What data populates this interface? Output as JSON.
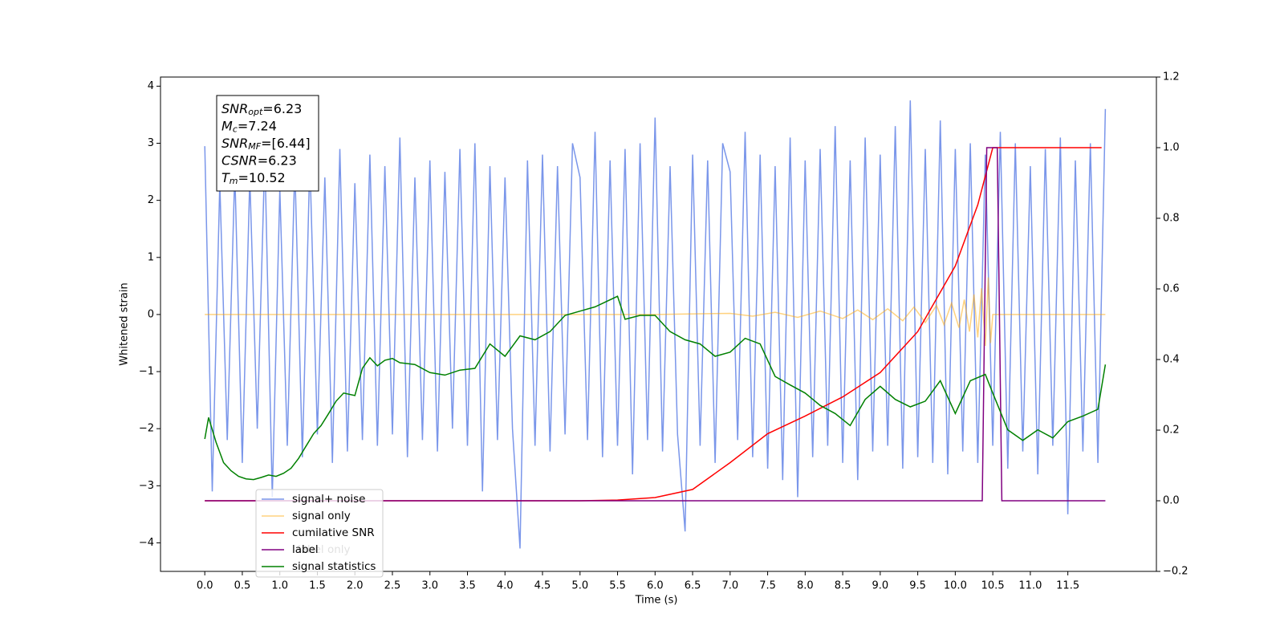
{
  "chart_data": {
    "type": "line",
    "xlabel": "Time (s)",
    "ylabel": "Whitened strain",
    "xlim": [
      -0.59,
      12.68
    ],
    "ylim": [
      -4.5,
      4.16
    ],
    "y2lim": [
      -0.2,
      1.2
    ],
    "xticks": [
      {
        "value": 0,
        "label": "0.0"
      },
      0.5,
      {
        "value": 1,
        "label": "1.0"
      },
      1.5,
      {
        "value": 2,
        "label": "2.0"
      },
      2.5,
      {
        "value": 3,
        "label": "3.0"
      },
      3.5,
      {
        "value": 4,
        "label": "4.0"
      },
      4.5,
      {
        "value": 5,
        "label": "5.0"
      },
      5.5,
      {
        "value": 6,
        "label": "6.0"
      },
      6.5,
      {
        "value": 7,
        "label": "7.0"
      },
      7.5,
      {
        "value": 8,
        "label": "8.0"
      },
      8.5,
      {
        "value": 9,
        "label": "9.0"
      },
      9.5,
      {
        "value": 10,
        "label": "10.0"
      },
      10.5,
      {
        "value": 11,
        "label": "11.0"
      },
      11.5
    ],
    "yticks": [
      {
        "value": -4,
        "label": "−4"
      },
      {
        "value": -3,
        "label": "−3"
      },
      {
        "value": -2,
        "label": "−2"
      },
      {
        "value": -1,
        "label": "−1"
      },
      0,
      1,
      2,
      3,
      4
    ],
    "y2ticks": [
      {
        "value": -0.2,
        "label": "−0.2"
      },
      {
        "value": 0,
        "label": "0.0"
      },
      0.2,
      0.4,
      0.6,
      0.8,
      {
        "value": 1,
        "label": "1.0"
      },
      1.2
    ],
    "legend": "lower left",
    "hidden_legend_entries": [
      {
        "name": "label only",
        "color": "purple"
      }
    ],
    "annotation": [
      {
        "base": "SNR",
        "sub": "opt",
        "text": "=6.23"
      },
      {
        "base": "M",
        "sub": "c",
        "text": "=7.24"
      },
      {
        "base": "SNR",
        "sub": "MF",
        "text": "=[6.44]"
      },
      {
        "base": "CSNR",
        "sub": null,
        "text": "=6.23"
      },
      {
        "base": "T",
        "sub": "m",
        "text": "=10.52"
      }
    ],
    "series": [
      {
        "name": "signal+ noise",
        "color": "#4169e1",
        "alpha": 0.7,
        "x": [
          0,
          0.1,
          0.2,
          0.3,
          0.4,
          0.5,
          0.6,
          0.7,
          0.8,
          0.9,
          1,
          1.1,
          1.2,
          1.3,
          1.4,
          1.5,
          1.6,
          1.7,
          1.8,
          1.9,
          2,
          2.1,
          2.2,
          2.3,
          2.4,
          2.5,
          2.6,
          2.7,
          2.8,
          2.9,
          3,
          3.1,
          3.2,
          3.3,
          3.4,
          3.5,
          3.6,
          3.7,
          3.8,
          3.9,
          4,
          4.1,
          4.2,
          4.3,
          4.4,
          4.5,
          4.6,
          4.7,
          4.8,
          4.9,
          5,
          5.1,
          5.2,
          5.3,
          5.4,
          5.5,
          5.6,
          5.7,
          5.8,
          5.9,
          6,
          6.1,
          6.2,
          6.3,
          6.4,
          6.5,
          6.6,
          6.7,
          6.8,
          6.9,
          7,
          7.1,
          7.2,
          7.3,
          7.4,
          7.5,
          7.6,
          7.7,
          7.8,
          7.9,
          8,
          8.1,
          8.2,
          8.3,
          8.4,
          8.5,
          8.6,
          8.7,
          8.8,
          8.9,
          9,
          9.1,
          9.2,
          9.3,
          9.4,
          9.5,
          9.6,
          9.7,
          9.8,
          9.9,
          10,
          10.1,
          10.2,
          10.3,
          10.4,
          10.5,
          10.6,
          10.7,
          10.8,
          10.9,
          11,
          11.1,
          11.2,
          11.3,
          11.4,
          11.5,
          11.6,
          11.7,
          11.8,
          11.9,
          12
        ],
        "values": [
          2.95,
          -3.1,
          2.3,
          -2.2,
          2.5,
          -2.6,
          2.4,
          -2.0,
          2.8,
          -3.2,
          2.2,
          -2.3,
          2.6,
          -2.5,
          2.7,
          -2.1,
          2.4,
          -2.6,
          2.9,
          -2.4,
          2.3,
          -2.2,
          2.8,
          -2.3,
          2.6,
          -2.1,
          3.1,
          -2.5,
          2.4,
          -2.2,
          2.7,
          -2.4,
          2.5,
          -2.0,
          2.9,
          -2.3,
          3.0,
          -3.1,
          2.6,
          -2.2,
          2.4,
          -2.0,
          -4.1,
          2.7,
          -2.3,
          2.8,
          -2.4,
          2.6,
          -2.1,
          3.0,
          2.4,
          -2.2,
          3.2,
          -2.5,
          2.7,
          -2.3,
          2.9,
          -2.8,
          3.0,
          -2.2,
          3.45,
          -2.4,
          2.6,
          -2.1,
          -3.8,
          2.8,
          -2.3,
          2.7,
          -2.6,
          3.0,
          2.5,
          -2.2,
          3.2,
          -2.5,
          2.8,
          -2.7,
          2.6,
          -2.9,
          3.1,
          -3.2,
          2.7,
          -2.5,
          2.9,
          -2.3,
          3.3,
          -2.6,
          2.7,
          -2.9,
          3.1,
          -2.4,
          2.8,
          -2.3,
          3.3,
          -2.7,
          3.75,
          -2.5,
          2.9,
          -2.6,
          3.4,
          -2.8,
          2.9,
          -2.4,
          3.0,
          -2.6,
          2.8,
          -2.3,
          3.2,
          -2.7,
          3.0,
          -2.4,
          2.6,
          -2.8,
          2.9,
          -2.3,
          3.1,
          -3.5,
          2.7,
          -2.4,
          3.0,
          -2.6,
          3.6
        ]
      },
      {
        "name": "signal only",
        "color": "orange",
        "alpha": 0.5,
        "x": [
          0,
          6.0,
          7.0,
          7.3,
          7.6,
          7.9,
          8.2,
          8.5,
          8.7,
          8.9,
          9.1,
          9.3,
          9.45,
          9.6,
          9.75,
          9.85,
          9.95,
          10.05,
          10.12,
          10.19,
          10.25,
          10.3,
          10.35,
          10.4,
          10.44,
          10.47,
          10.5,
          12.0
        ],
        "values": [
          0,
          0,
          0.02,
          -0.03,
          0.04,
          -0.05,
          0.06,
          -0.07,
          0.08,
          -0.09,
          0.1,
          -0.11,
          0.13,
          -0.14,
          0.16,
          -0.18,
          0.2,
          -0.23,
          0.26,
          -0.3,
          0.35,
          -0.4,
          0.46,
          -0.55,
          0.65,
          -0.5,
          0,
          0
        ]
      },
      {
        "name": "cumilative SNR",
        "color": "red",
        "axis": "y2",
        "x": [
          0,
          5.0,
          5.5,
          6.0,
          6.5,
          7.0,
          7.5,
          8.0,
          8.5,
          9.0,
          9.5,
          10.0,
          10.3,
          10.5,
          11.95
        ],
        "values": [
          0,
          0,
          0.002,
          0.009,
          0.032,
          0.108,
          0.19,
          0.24,
          0.294,
          0.363,
          0.479,
          0.665,
          0.838,
          1.0,
          1.0
        ]
      },
      {
        "name": "label",
        "color": "purple",
        "axis": "y2",
        "x": [
          0,
          10.36,
          10.42,
          10.56,
          10.62,
          12.0
        ],
        "values": [
          0,
          0,
          1,
          1,
          0,
          0
        ]
      },
      {
        "name": "signal statistics",
        "color": "green",
        "axis": "y2",
        "x": [
          0,
          0.05,
          0.15,
          0.25,
          0.35,
          0.45,
          0.55,
          0.65,
          0.75,
          0.85,
          0.95,
          1.05,
          1.15,
          1.25,
          1.35,
          1.45,
          1.55,
          1.65,
          1.75,
          1.85,
          2.0,
          2.1,
          2.2,
          2.3,
          2.4,
          2.5,
          2.6,
          2.8,
          3.0,
          3.2,
          3.4,
          3.6,
          3.8,
          4.0,
          4.2,
          4.4,
          4.6,
          4.8,
          5.0,
          5.2,
          5.5,
          5.6,
          5.8,
          6.0,
          6.2,
          6.4,
          6.6,
          6.8,
          7.0,
          7.2,
          7.4,
          7.6,
          7.8,
          8.0,
          8.2,
          8.4,
          8.6,
          8.8,
          9.0,
          9.2,
          9.4,
          9.6,
          9.8,
          10.0,
          10.2,
          10.4,
          10.5,
          10.7,
          10.9,
          11.1,
          11.3,
          11.5,
          11.7,
          11.9,
          12.0
        ],
        "values": [
          0.175,
          0.236,
          0.166,
          0.108,
          0.085,
          0.069,
          0.062,
          0.06,
          0.066,
          0.073,
          0.069,
          0.078,
          0.092,
          0.12,
          0.155,
          0.19,
          0.213,
          0.247,
          0.282,
          0.305,
          0.298,
          0.375,
          0.405,
          0.382,
          0.398,
          0.403,
          0.391,
          0.386,
          0.363,
          0.356,
          0.37,
          0.375,
          0.444,
          0.409,
          0.467,
          0.456,
          0.479,
          0.525,
          0.537,
          0.549,
          0.579,
          0.514,
          0.525,
          0.525,
          0.479,
          0.456,
          0.444,
          0.409,
          0.421,
          0.46,
          0.444,
          0.352,
          0.328,
          0.305,
          0.27,
          0.247,
          0.213,
          0.287,
          0.324,
          0.287,
          0.266,
          0.282,
          0.34,
          0.247,
          0.34,
          0.358,
          0.305,
          0.201,
          0.171,
          0.201,
          0.178,
          0.224,
          0.24,
          0.259,
          0.386
        ]
      }
    ]
  }
}
